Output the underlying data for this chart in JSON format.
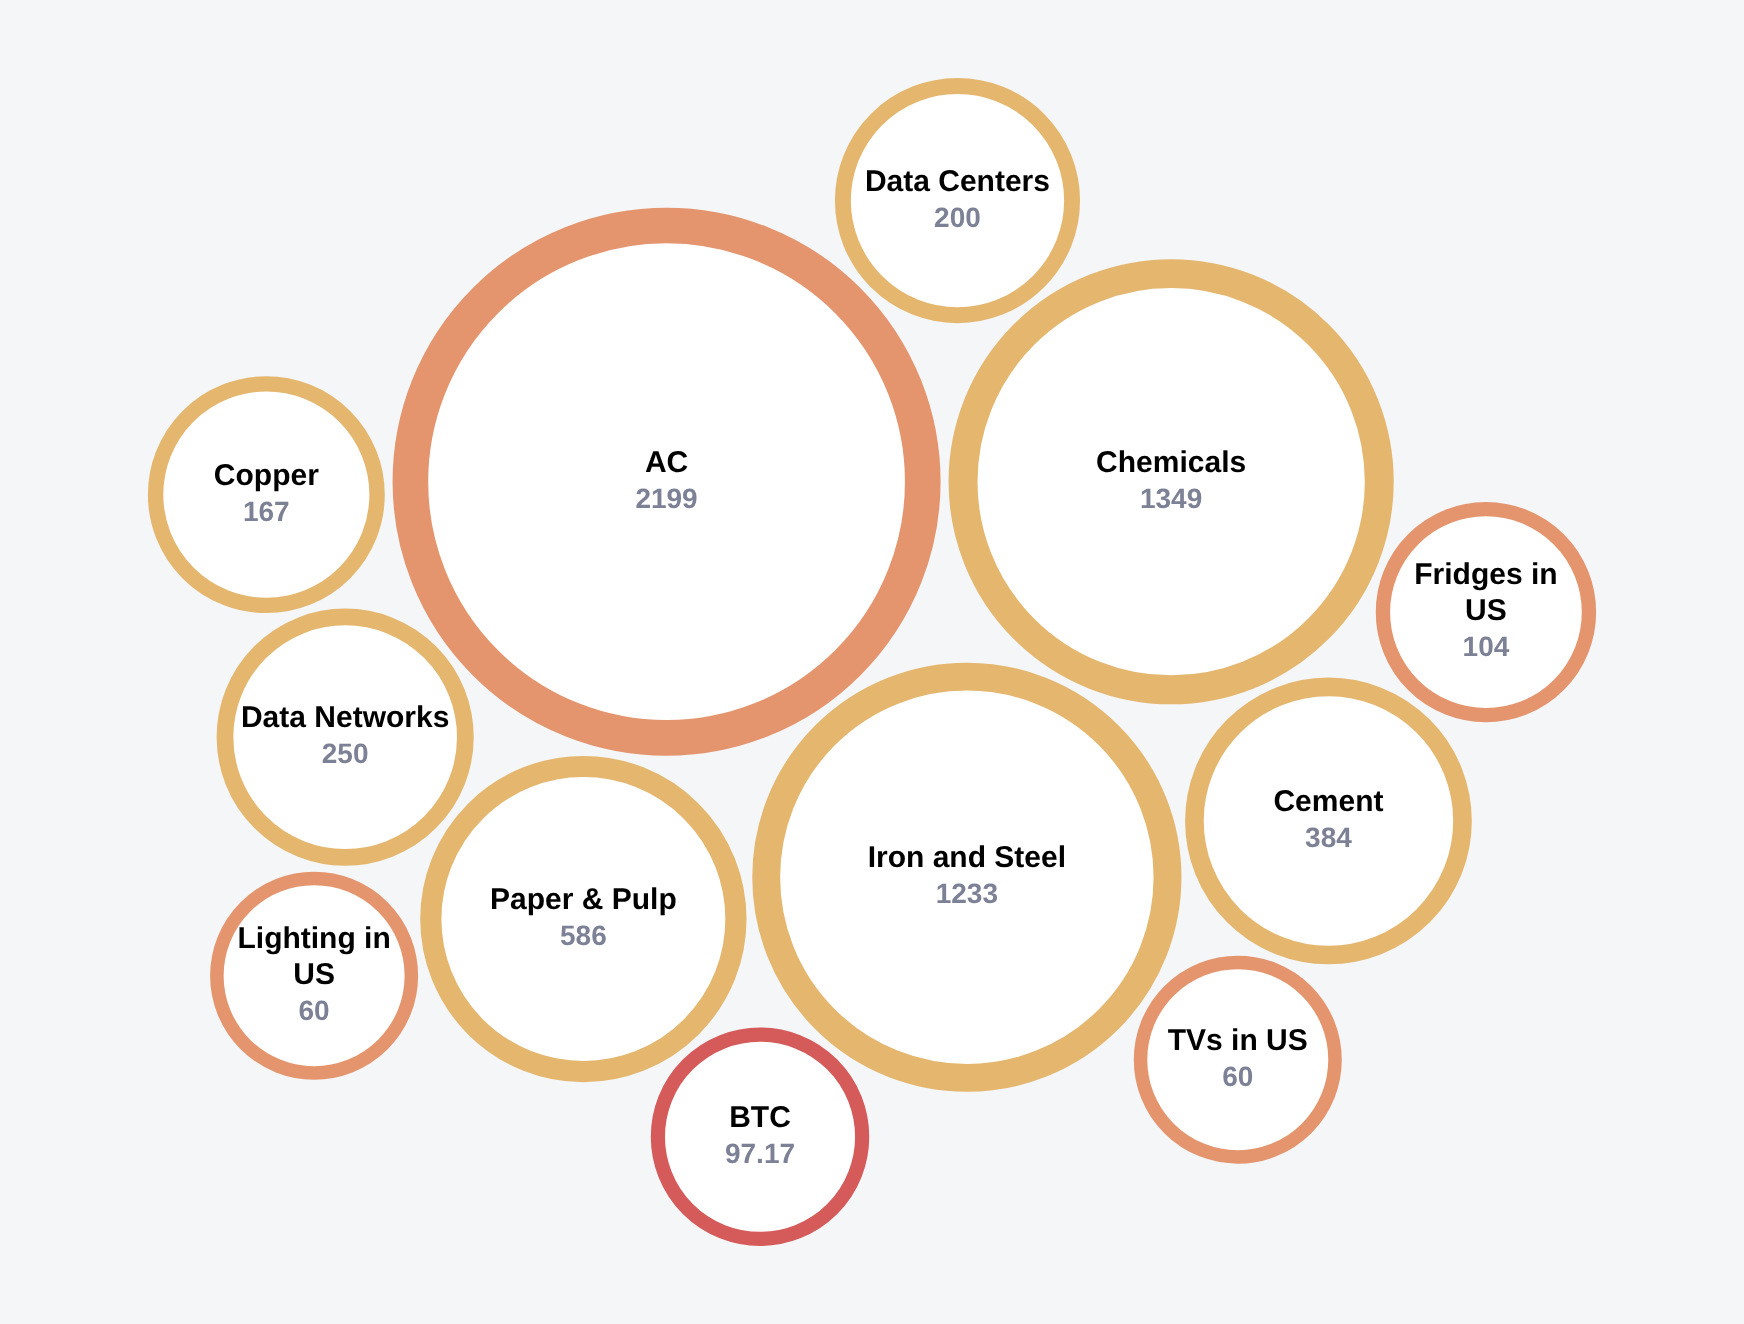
{
  "chart_data": {
    "type": "other",
    "categories": [
      "AC",
      "Data Networks",
      "Data Centers",
      "BTC",
      "Chemicals",
      "Cement",
      "TVs in US",
      "Iron and Steel",
      "Paper & Pulp",
      "Copper",
      "Lighting in US",
      "Fridges in US"
    ],
    "values": [
      2199,
      250,
      200,
      97.17,
      1349,
      384,
      60,
      1233,
      586,
      167,
      60,
      104
    ],
    "colors": [
      "#e5956d",
      "#e5b66e",
      "#e5b66e",
      "#d55a5a",
      "#e5b66e",
      "#e5b66e",
      "#e5956d",
      "#e5b66e",
      "#e5b66e",
      "#e5b66e",
      "#e5956d",
      "#e5956d"
    ],
    "data_labels": true
  }
}
